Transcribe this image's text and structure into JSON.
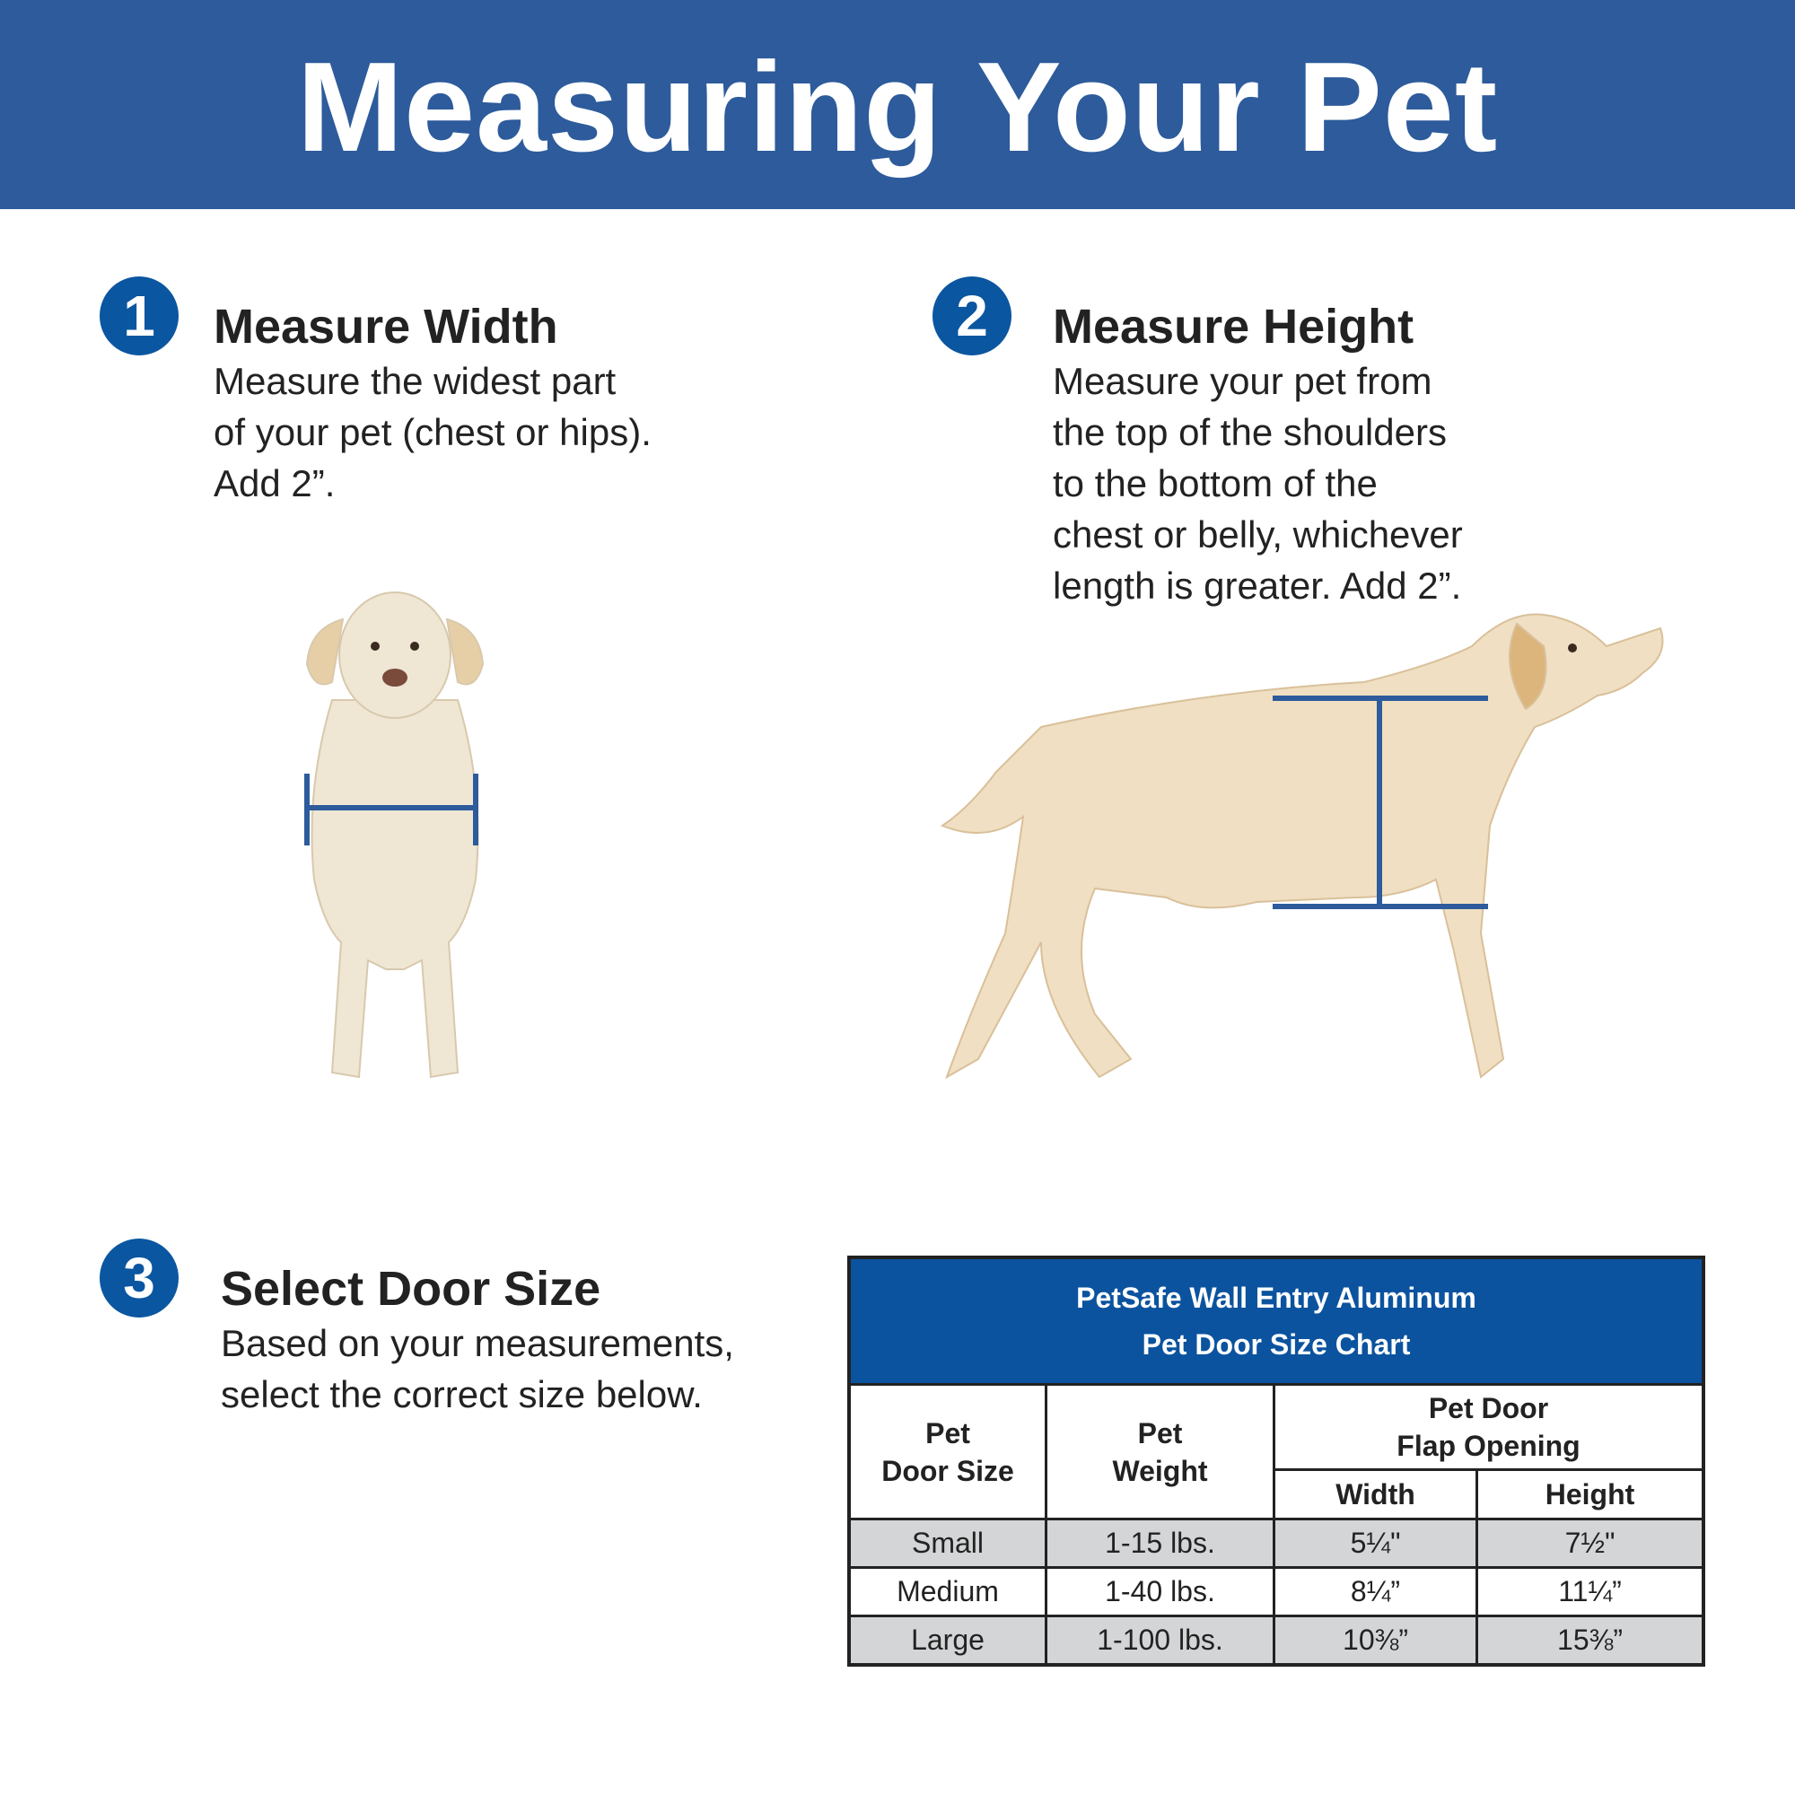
{
  "header": {
    "title": "Measuring Your Pet",
    "color": "#2d5b9b"
  },
  "steps": [
    {
      "number": "1",
      "title": "Measure Width",
      "lines": [
        "Measure the widest part",
        "of your pet (chest or hips).",
        "Add 2”."
      ]
    },
    {
      "number": "2",
      "title": "Measure Height",
      "lines": [
        "Measure your pet from",
        "the top of the shoulders",
        "to the bottom of the",
        "chest or belly, whichever",
        "length is greater. Add 2”."
      ]
    },
    {
      "number": "3",
      "title": "Select Door Size",
      "lines": [
        "Based on your measurements,",
        "select the correct size below."
      ]
    }
  ],
  "images": {
    "front_dog": "dog-front-width-measurement",
    "side_dog": "dog-side-height-measurement",
    "measure_line_color": "#2d5b9b"
  },
  "table": {
    "title_lines": [
      "PetSafe Wall Entry Aluminum",
      "Pet Door Size Chart"
    ],
    "headers": {
      "size": [
        "Pet",
        "Door Size"
      ],
      "weight": [
        "Pet",
        "Weight"
      ],
      "flap": [
        "Pet Door",
        "Flap Opening"
      ],
      "width": "Width",
      "height": "Height"
    },
    "rows": [
      {
        "size": "Small",
        "weight": "1-15 lbs.",
        "width": "5¼\"",
        "height": "7½\""
      },
      {
        "size": "Medium",
        "weight": "1-40 lbs.",
        "width": "8¼”",
        "height": "11¼”"
      },
      {
        "size": "Large",
        "weight": "1-100 lbs.",
        "width": "10⅜”",
        "height": "15⅜”"
      }
    ],
    "header_color": "#0b539e",
    "stripe_color": "#d4d5d7"
  }
}
